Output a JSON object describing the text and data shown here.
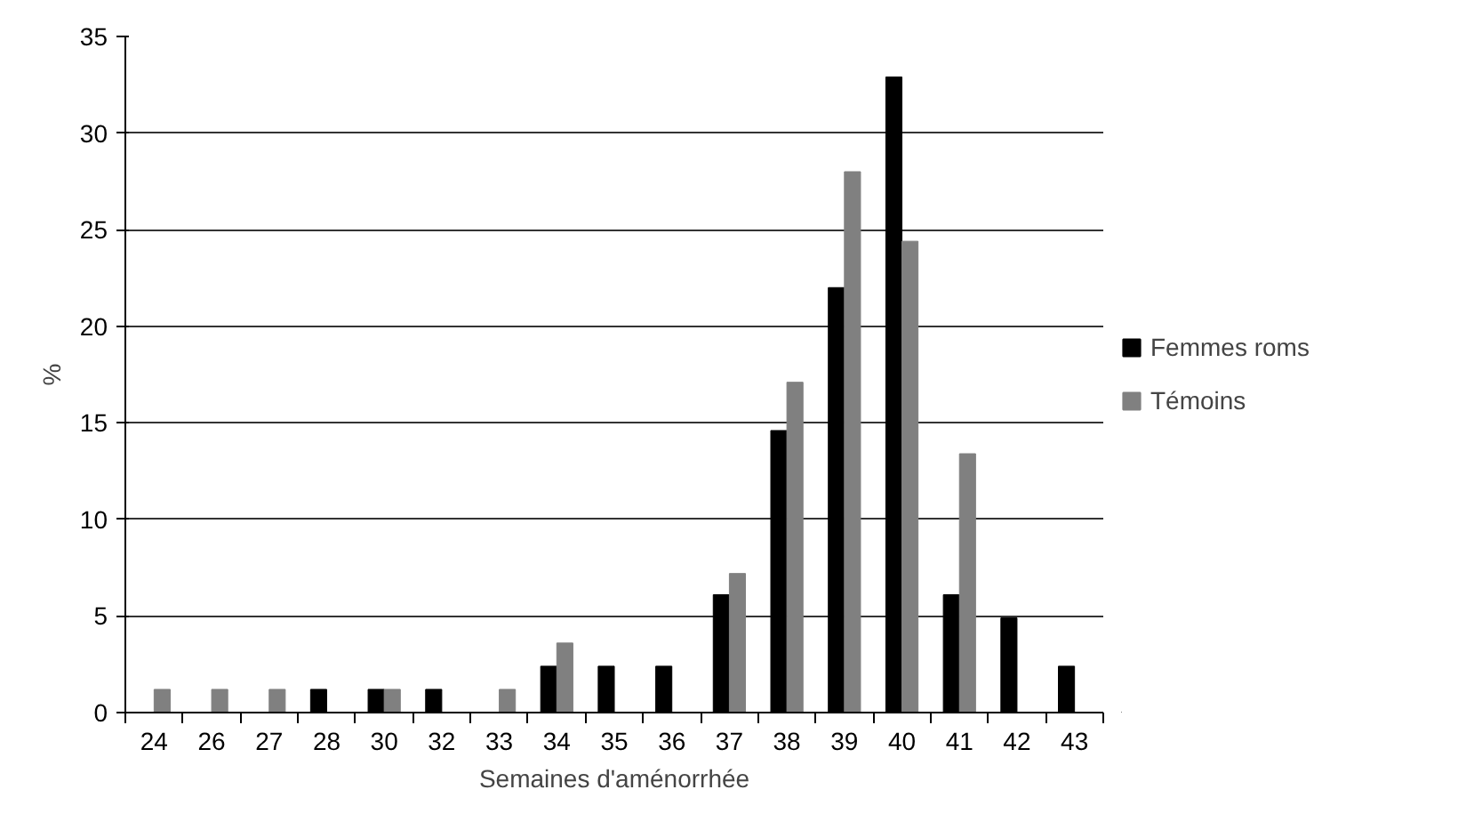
{
  "chart_data": {
    "type": "bar",
    "xlabel": "Semaines d'aménorrhée",
    "ylabel": "%",
    "categories": [
      "24",
      "26",
      "27",
      "28",
      "30",
      "32",
      "33",
      "34",
      "35",
      "36",
      "37",
      "38",
      "39",
      "40",
      "41",
      "42",
      "43"
    ],
    "series": [
      {
        "name": "Femmes roms",
        "color": "#000000",
        "values": [
          0,
          0,
          0,
          1.2,
          1.2,
          1.2,
          0,
          2.4,
          2.4,
          2.4,
          6.1,
          14.6,
          22,
          32.9,
          6.1,
          4.9,
          2.4
        ]
      },
      {
        "name": "Témoins",
        "color": "#808080",
        "values": [
          1.2,
          1.2,
          1.2,
          0,
          1.2,
          0,
          1.2,
          3.6,
          0,
          0,
          7.2,
          17.1,
          28,
          24.4,
          13.4,
          0,
          0
        ]
      }
    ],
    "ylim": [
      0,
      35
    ],
    "yticks": [
      0,
      5,
      10,
      15,
      20,
      25,
      30,
      35
    ],
    "grid": "y",
    "legend": "right"
  }
}
